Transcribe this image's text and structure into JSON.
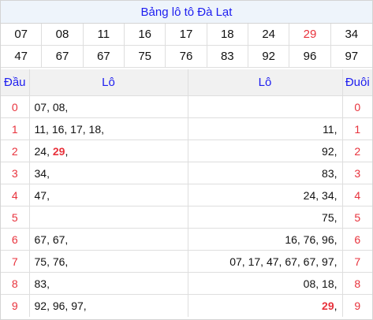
{
  "title": "Bảng lô tô Đà Lạt",
  "numbers": [
    [
      {
        "v": "07"
      },
      {
        "v": "08"
      },
      {
        "v": "11"
      },
      {
        "v": "16"
      },
      {
        "v": "17"
      },
      {
        "v": "18"
      },
      {
        "v": "24"
      },
      {
        "v": "29",
        "red": true
      },
      {
        "v": "34"
      }
    ],
    [
      {
        "v": "47"
      },
      {
        "v": "67"
      },
      {
        "v": "67"
      },
      {
        "v": "75"
      },
      {
        "v": "76"
      },
      {
        "v": "83"
      },
      {
        "v": "92"
      },
      {
        "v": "96"
      },
      {
        "v": "97"
      }
    ]
  ],
  "headers": {
    "dau": "Đầu",
    "lo_left": "Lô",
    "lo_right": "Lô",
    "duoi": "Đuôi"
  },
  "rows": [
    {
      "d": "0",
      "left": [
        {
          "t": "07, "
        },
        {
          "t": "08, "
        }
      ],
      "right": [],
      "u": "0"
    },
    {
      "d": "1",
      "left": [
        {
          "t": "11, "
        },
        {
          "t": "16, "
        },
        {
          "t": "17, "
        },
        {
          "t": "18, "
        }
      ],
      "right": [
        {
          "t": "11, "
        }
      ],
      "u": "1"
    },
    {
      "d": "2",
      "left": [
        {
          "t": "24, "
        },
        {
          "t": "29",
          "hl": true
        },
        {
          "t": ", "
        }
      ],
      "right": [
        {
          "t": "92, "
        }
      ],
      "u": "2"
    },
    {
      "d": "3",
      "left": [
        {
          "t": "34, "
        }
      ],
      "right": [
        {
          "t": "83, "
        }
      ],
      "u": "3"
    },
    {
      "d": "4",
      "left": [
        {
          "t": "47, "
        }
      ],
      "right": [
        {
          "t": "24, "
        },
        {
          "t": "34, "
        }
      ],
      "u": "4"
    },
    {
      "d": "5",
      "left": [],
      "right": [
        {
          "t": "75, "
        }
      ],
      "u": "5"
    },
    {
      "d": "6",
      "left": [
        {
          "t": "67, "
        },
        {
          "t": "67, "
        }
      ],
      "right": [
        {
          "t": "16, "
        },
        {
          "t": "76, "
        },
        {
          "t": "96, "
        }
      ],
      "u": "6"
    },
    {
      "d": "7",
      "left": [
        {
          "t": "75, "
        },
        {
          "t": "76, "
        }
      ],
      "right": [
        {
          "t": "07, "
        },
        {
          "t": "17, "
        },
        {
          "t": "47, "
        },
        {
          "t": "67, "
        },
        {
          "t": "67, "
        },
        {
          "t": "97, "
        }
      ],
      "u": "7"
    },
    {
      "d": "8",
      "left": [
        {
          "t": "83, "
        }
      ],
      "right": [
        {
          "t": "08, "
        },
        {
          "t": "18, "
        }
      ],
      "u": "8"
    },
    {
      "d": "9",
      "left": [
        {
          "t": "92, "
        },
        {
          "t": "96, "
        },
        {
          "t": "97, "
        }
      ],
      "right": [
        {
          "t": "29",
          "hl": true
        },
        {
          "t": ", "
        }
      ],
      "u": "9"
    }
  ],
  "colors": {
    "title_text": "#1d1df0",
    "red": "#e8323c",
    "title_bg": "#eef4fb",
    "header_bg": "#f1f1f1"
  }
}
